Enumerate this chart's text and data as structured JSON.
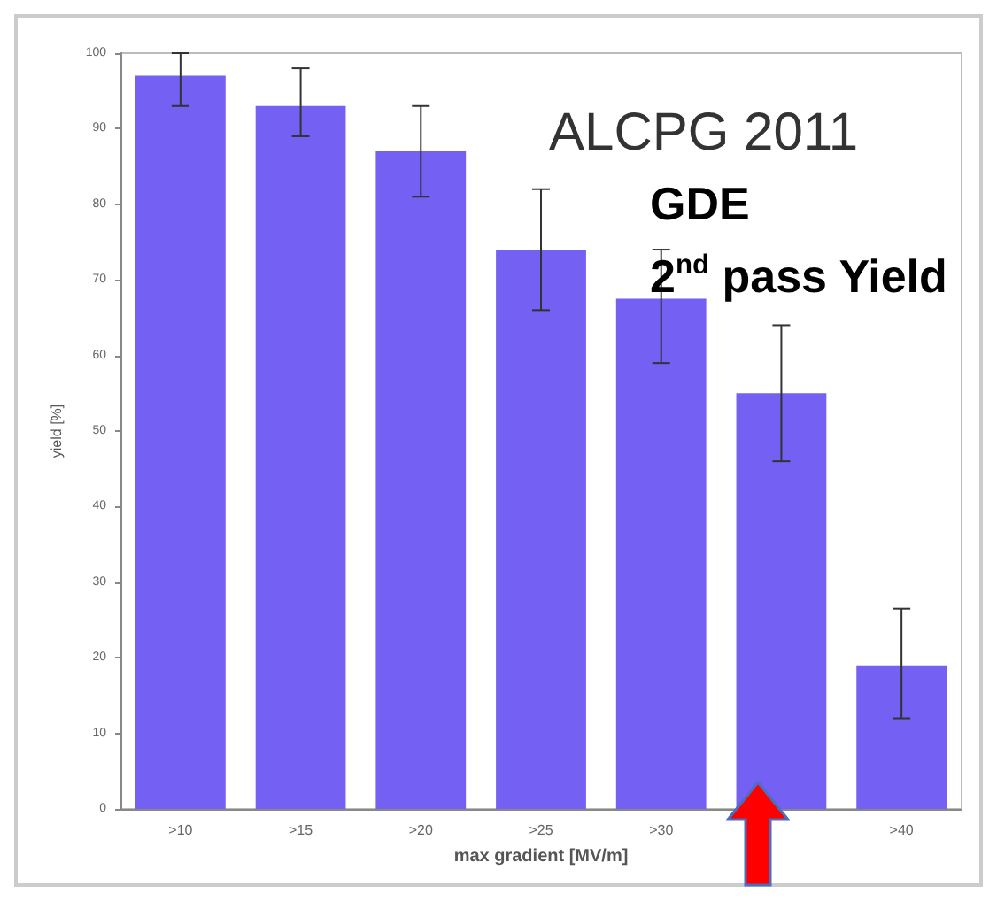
{
  "chart_data": {
    "type": "bar",
    "categories": [
      ">10",
      ">15",
      ">20",
      ">25",
      ">30",
      null,
      ">40"
    ],
    "values": [
      97,
      93,
      87,
      74,
      67.5,
      55,
      19
    ],
    "errors": [
      [
        93,
        100
      ],
      [
        89,
        98
      ],
      [
        81,
        93
      ],
      [
        66,
        82
      ],
      [
        59,
        74
      ],
      [
        46,
        64
      ],
      [
        12,
        26.5
      ]
    ],
    "color": "#7460f2",
    "xlabel": "max gradient [MV/m]",
    "ylabel": "yield [%]",
    "ylim": [
      0,
      100
    ],
    "yticks": [
      0,
      10,
      20,
      30,
      40,
      50,
      60,
      70,
      80,
      90,
      100
    ],
    "grid": false,
    "annotations": [
      "ALCPG 2011",
      "GDE",
      "2$^{nd}$ pass Yield"
    ]
  }
}
